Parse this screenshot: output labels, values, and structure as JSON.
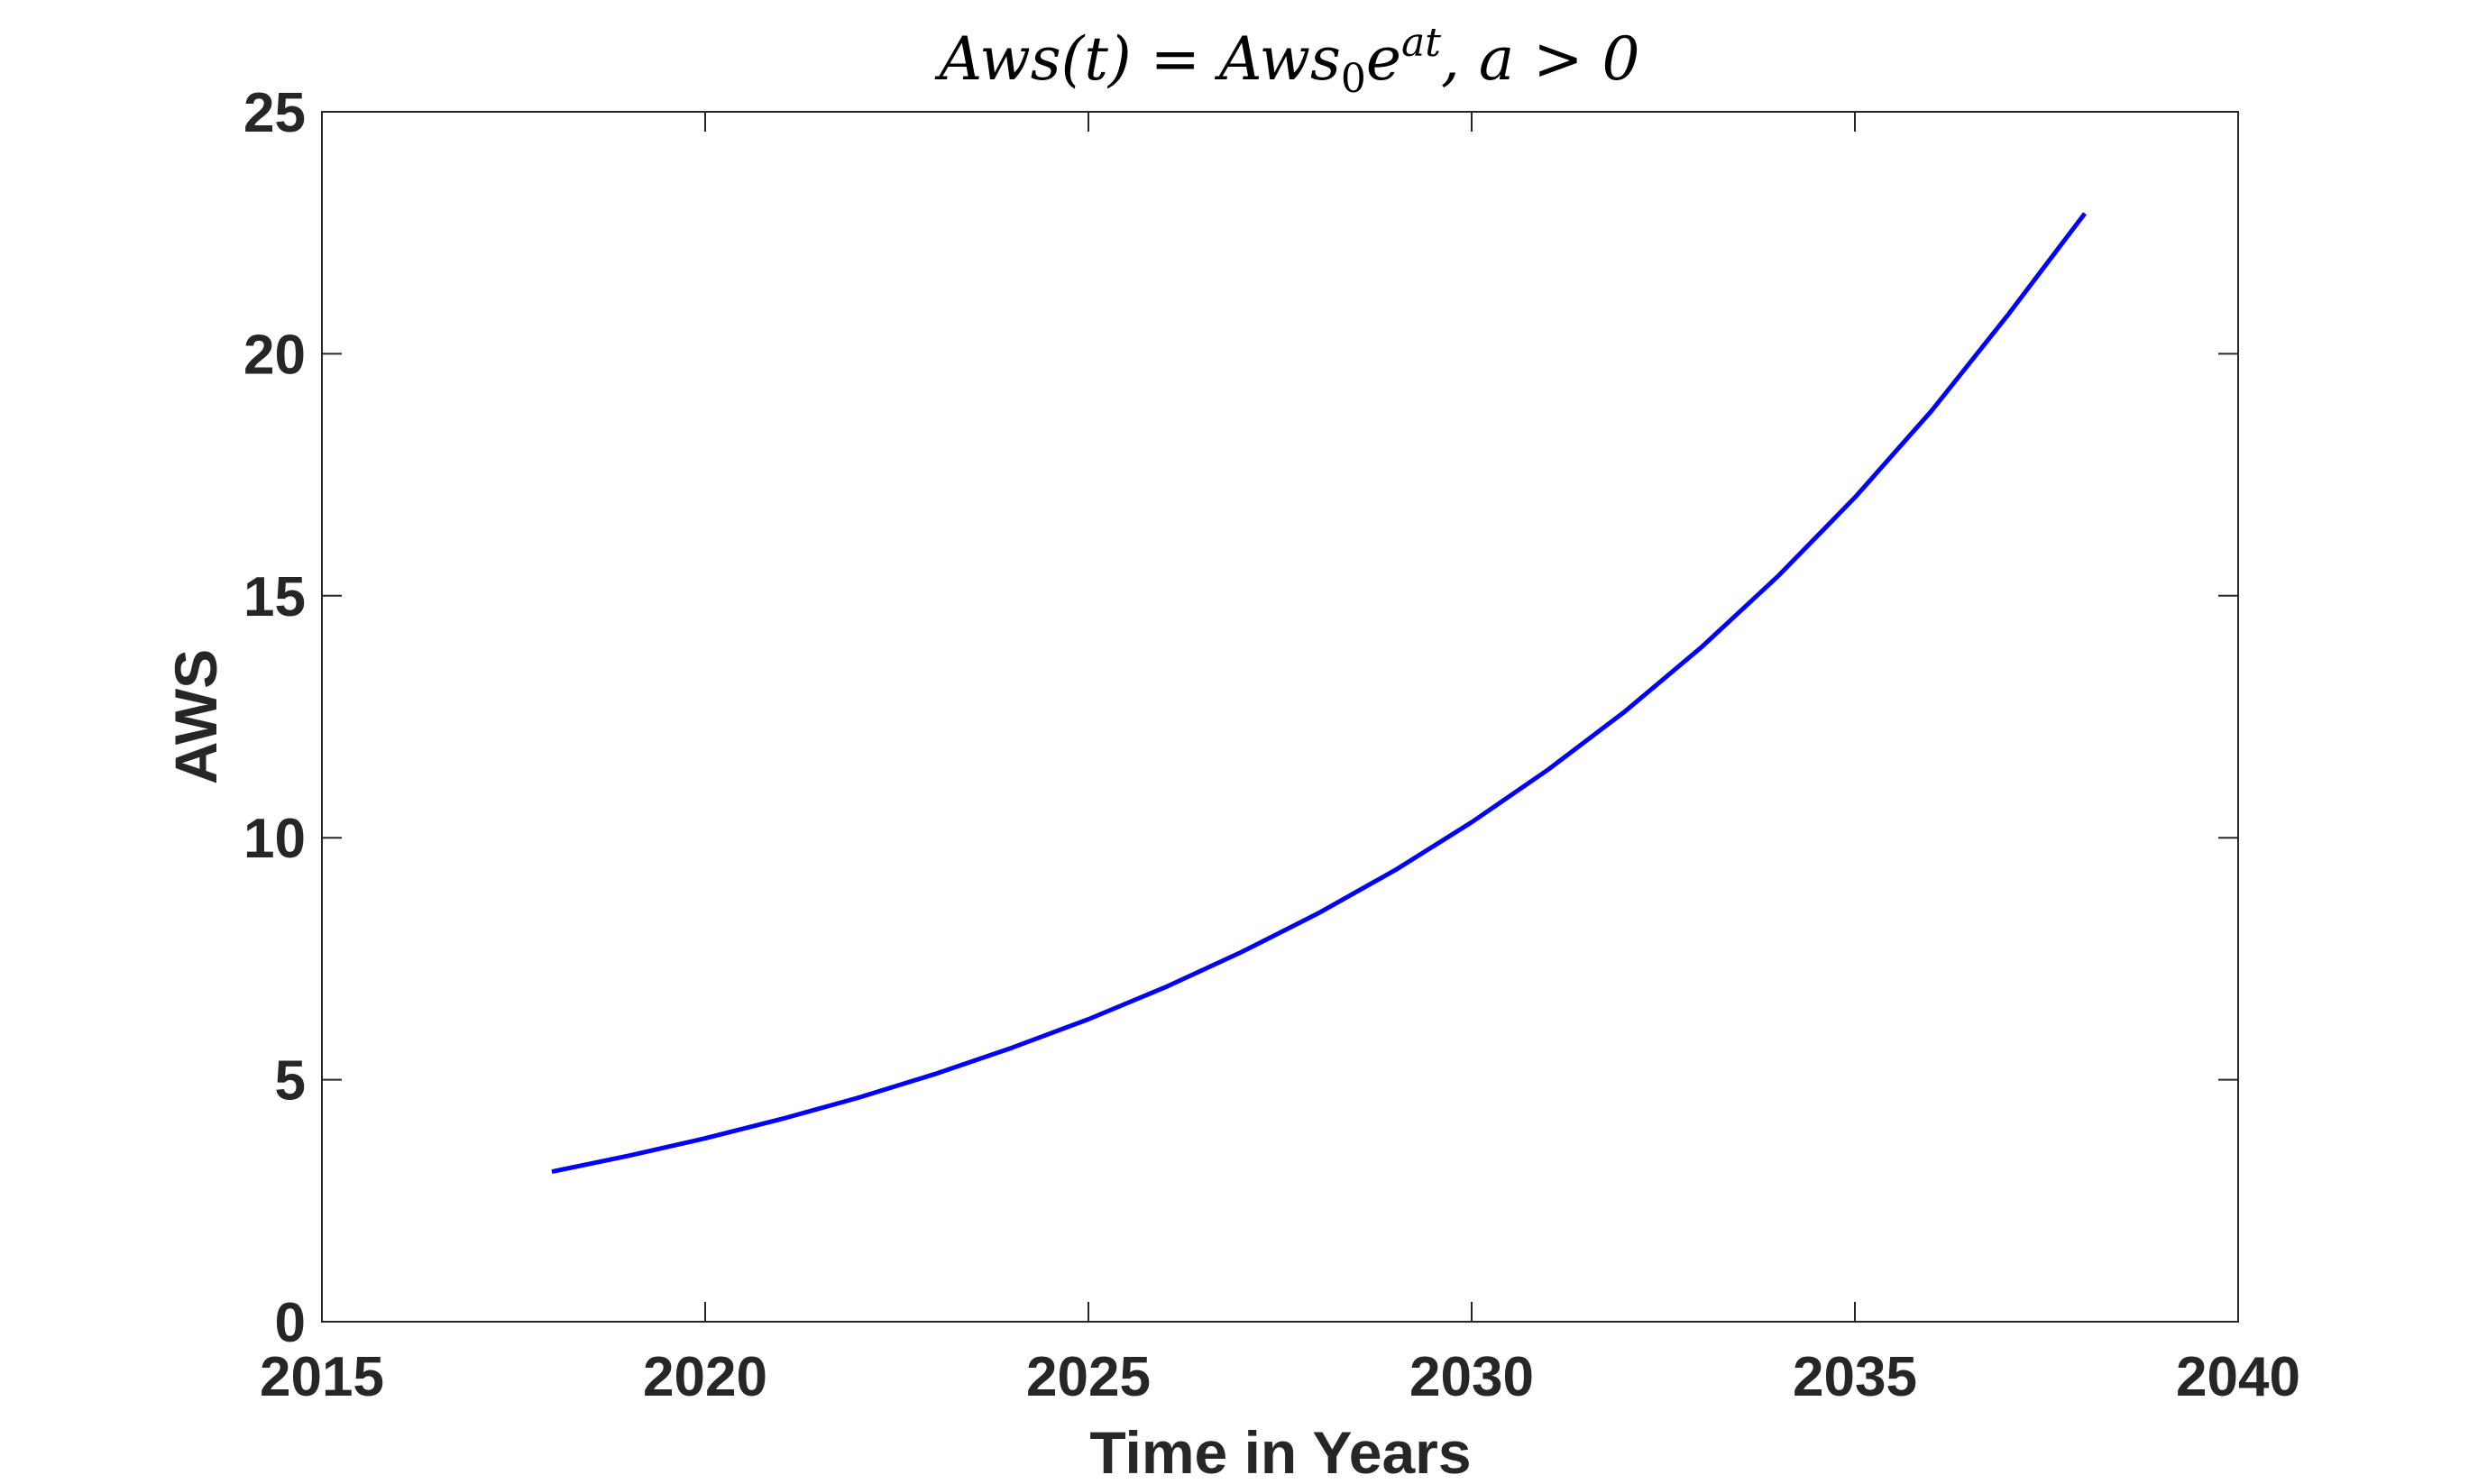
{
  "chart_data": {
    "type": "line",
    "title": {
      "base": "Aws(t) = Aws",
      "subscript": "0",
      "e": "e",
      "superscript": "at",
      "suffix": ", a > 0"
    },
    "xlabel": "Time in Years",
    "ylabel": "AWS",
    "xlim": [
      2015,
      2040
    ],
    "ylim": [
      0,
      25
    ],
    "xticks": [
      "2015",
      "2020",
      "2025",
      "2030",
      "2035",
      "2040"
    ],
    "yticks": [
      "0",
      "5",
      "10",
      "15",
      "20",
      "25"
    ],
    "grid": false,
    "legend": "none",
    "series": [
      {
        "color": "#0000ff",
        "x": [
          2018,
          2019,
          2020,
          2021,
          2022,
          2023,
          2024,
          2025,
          2026,
          2027,
          2028,
          2029,
          2030,
          2031,
          2032,
          2033,
          2034,
          2035,
          2036,
          2037,
          2038
        ],
        "y": [
          3.1,
          3.43,
          3.79,
          4.19,
          4.63,
          5.12,
          5.66,
          6.25,
          6.91,
          7.64,
          8.44,
          9.33,
          10.32,
          11.41,
          12.61,
          13.94,
          15.41,
          17.03,
          18.82,
          20.81,
          22.9
        ]
      }
    ]
  }
}
